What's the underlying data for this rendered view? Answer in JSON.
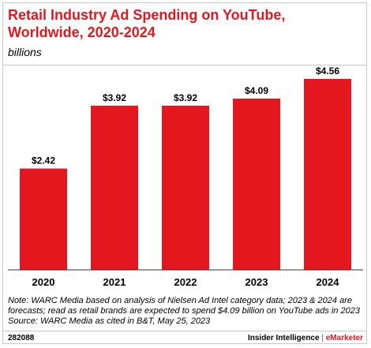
{
  "header": {
    "title_line1": "Retail Industry Ad Spending on YouTube,",
    "title_line2": "Worldwide, 2020-2024",
    "subtitle": "billions"
  },
  "chart_data": {
    "type": "bar",
    "title": "Retail Industry Ad Spending on YouTube, Worldwide, 2020-2024",
    "subtitle": "billions",
    "categories": [
      "2020",
      "2021",
      "2022",
      "2023",
      "2024"
    ],
    "values": [
      2.42,
      3.92,
      3.92,
      4.09,
      4.56
    ],
    "data_labels": [
      "$2.42",
      "$3.92",
      "$3.92",
      "$4.09",
      "$4.56"
    ],
    "ylim": [
      0,
      4.56
    ],
    "bar_color": "#e4171f",
    "grid": false,
    "legend": "none"
  },
  "notes": {
    "line1": "Note: WARC Media based on analysis of Nielsen Ad Intel category data; 2023 & 2024 are",
    "line2": "forecasts; read as retail brands are expected to spend $4.09 billion on YouTube ads in 2023",
    "line3": "Source: WARC Media as cited in B&T, May 25, 2023"
  },
  "footer": {
    "chart_id": "282088",
    "brand_main": "Insider Intelligence",
    "brand_sep": "|",
    "brand_accent": "eMarketer"
  }
}
